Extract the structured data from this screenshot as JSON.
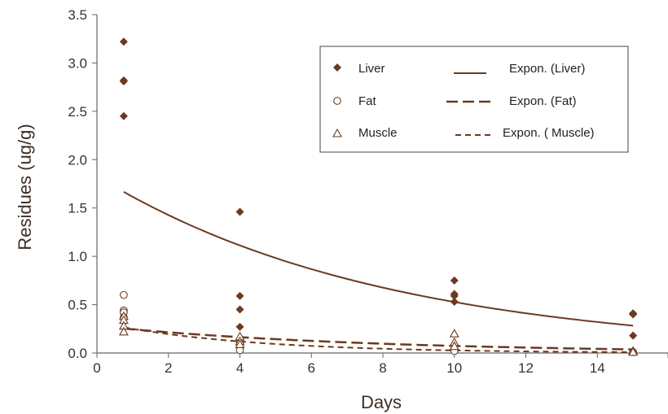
{
  "colors": {
    "series": "#6b3a1f",
    "axis": "#666666",
    "text": "#333333",
    "legend_border": "#444444"
  },
  "chart_data": {
    "type": "scatter",
    "title": "",
    "xlabel": "Days",
    "ylabel": "Residues (ug/g)",
    "xlim": [
      0,
      16
    ],
    "ylim": [
      0,
      3.5
    ],
    "x_ticks": [
      "0",
      "2",
      "4",
      "6",
      "8",
      "10",
      "12",
      "14"
    ],
    "y_ticks": [
      "0.0",
      "0.5",
      "1.0",
      "1.5",
      "2.0",
      "2.5",
      "3.0",
      "3.5"
    ],
    "grid": false,
    "legend_position": "top-right",
    "series": [
      {
        "name": "Liver",
        "marker": "filled-diamond",
        "points": [
          [
            0.75,
            3.22
          ],
          [
            0.75,
            2.82
          ],
          [
            0.75,
            2.81
          ],
          [
            0.75,
            2.45
          ],
          [
            4,
            1.46
          ],
          [
            4,
            0.59
          ],
          [
            4,
            0.45
          ],
          [
            4,
            0.27
          ],
          [
            4,
            0.13
          ],
          [
            10,
            0.75
          ],
          [
            10,
            0.61
          ],
          [
            10,
            0.59
          ],
          [
            10,
            0.53
          ],
          [
            15,
            0.41
          ],
          [
            15,
            0.4
          ],
          [
            15,
            0.18
          ]
        ]
      },
      {
        "name": "Fat",
        "marker": "open-circle",
        "points": [
          [
            0.75,
            0.6
          ],
          [
            0.75,
            0.44
          ],
          [
            0.75,
            0.42
          ],
          [
            0.75,
            0.37
          ],
          [
            4,
            0.11
          ],
          [
            4,
            0.06
          ],
          [
            4,
            0.03
          ],
          [
            10,
            0.04
          ],
          [
            10,
            0.02
          ],
          [
            15,
            0.01
          ]
        ]
      },
      {
        "name": "Muscle",
        "marker": "open-triangle",
        "points": [
          [
            0.75,
            0.38
          ],
          [
            0.75,
            0.34
          ],
          [
            0.75,
            0.28
          ],
          [
            0.75,
            0.22
          ],
          [
            4,
            0.17
          ],
          [
            4,
            0.12
          ],
          [
            4,
            0.09
          ],
          [
            10,
            0.2
          ],
          [
            10,
            0.11
          ],
          [
            10,
            0.07
          ],
          [
            15,
            0.02
          ],
          [
            15,
            0.01
          ]
        ]
      }
    ],
    "trendlines": [
      {
        "name": "Expon. (Liver)",
        "style": "solid",
        "x_range": [
          0.75,
          15
        ],
        "a": 1.83,
        "b": -0.1244
      },
      {
        "name": "Expon. (Fat)",
        "style": "long-dash",
        "x_range": [
          0.75,
          15
        ],
        "a": 0.28,
        "b": -0.1339
      },
      {
        "name": "Expon. ( Muscle)",
        "style": "short-dash",
        "x_range": [
          0.75,
          15
        ],
        "a": 0.32,
        "b": -0.247
      }
    ]
  }
}
